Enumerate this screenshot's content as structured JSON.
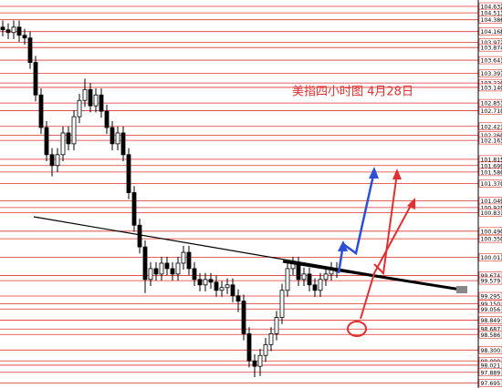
{
  "chart_data": {
    "type": "candlestick",
    "annotation": "美指四小时图 4月28日",
    "ylim": [
      97.6,
      104.75
    ],
    "level_color": "#e03030",
    "up_color": "#ffffff",
    "down_color": "#000000",
    "yticks": [
      104.632,
      104.513,
      104.386,
      104.168,
      103.972,
      103.874,
      103.641,
      103.397,
      {
        "value": 103.22,
        "label": "103.220"
      },
      {
        "value": 103.14,
        "label": "103.140"
      },
      102.851,
      {
        "value": 102.71,
        "label": "102.710"
      },
      102.421,
      {
        "value": 102.26,
        "label": "102.260"
      },
      102.163,
      101.815,
      101.699,
      {
        "value": 101.58,
        "label": "101.580"
      },
      {
        "value": 101.37,
        "label": "101.370"
      },
      101.049,
      100.925,
      100.831,
      {
        "value": 100.49,
        "label": "100.490"
      },
      {
        "value": 100.35,
        "label": "100.350"
      },
      100.011,
      99.674,
      99.579,
      99.295,
      {
        "value": 99.15,
        "label": "99.150"
      },
      99.056,
      98.849,
      98.687,
      98.586,
      {
        "value": 98.3,
        "label": "98.300"
      },
      98.099,
      98.021,
      97.889,
      97.695
    ],
    "open": [
      104.25,
      104.2,
      104.15,
      104.25,
      104.1,
      104.05,
      103.6,
      103.0,
      102.4,
      101.9,
      101.7,
      101.9,
      102.3,
      102.1,
      102.6,
      102.9,
      103.1,
      102.8,
      103.0,
      102.7,
      102.4,
      102.1,
      102.3,
      101.9,
      101.2,
      100.6,
      100.2,
      99.6,
      99.8,
      99.7,
      99.9,
      99.8,
      99.7,
      99.9,
      100.1,
      99.8,
      99.6,
      99.5,
      99.6,
      99.55,
      99.4,
      99.45,
      99.5,
      99.3,
      99.2,
      98.6,
      98.1,
      98.0,
      98.2,
      98.4,
      98.6,
      98.9,
      99.4,
      99.8,
      99.9,
      99.6,
      99.7,
      99.5,
      99.4,
      99.6,
      99.7,
      99.8
    ],
    "high": [
      104.37,
      104.32,
      104.37,
      104.37,
      104.22,
      104.17,
      103.72,
      103.12,
      102.52,
      102.02,
      102.02,
      102.42,
      102.42,
      102.72,
      103.02,
      103.3,
      103.22,
      103.12,
      103.12,
      102.82,
      102.52,
      102.42,
      102.42,
      102.02,
      101.32,
      100.72,
      100.32,
      99.92,
      99.92,
      100.02,
      100.02,
      99.92,
      100.02,
      100.22,
      100.22,
      99.92,
      99.72,
      99.72,
      99.72,
      99.67,
      99.57,
      99.62,
      99.62,
      99.42,
      99.32,
      98.72,
      98.22,
      98.32,
      98.52,
      98.72,
      99.02,
      99.52,
      99.92,
      100.02,
      100.02,
      99.82,
      99.82,
      99.62,
      99.72,
      99.82,
      99.92,
      99.92
    ],
    "low": [
      104.08,
      104.03,
      104.03,
      103.98,
      103.93,
      103.48,
      102.88,
      102.28,
      101.78,
      101.5,
      101.58,
      101.78,
      101.98,
      101.98,
      102.48,
      102.78,
      102.68,
      102.68,
      102.58,
      102.28,
      101.98,
      101.98,
      101.78,
      101.08,
      100.48,
      100.08,
      99.35,
      99.48,
      99.58,
      99.58,
      99.68,
      99.58,
      99.58,
      99.78,
      99.68,
      99.48,
      99.38,
      99.38,
      99.43,
      99.28,
      99.28,
      99.33,
      99.18,
      99.0,
      98.48,
      97.98,
      97.8,
      97.82,
      98.08,
      98.28,
      98.48,
      98.78,
      99.28,
      99.68,
      99.48,
      99.48,
      99.38,
      99.28,
      99.28,
      99.48,
      99.58,
      99.63
    ],
    "close": [
      104.2,
      104.15,
      104.25,
      104.1,
      104.05,
      103.6,
      103.0,
      102.4,
      101.9,
      101.7,
      101.9,
      102.3,
      102.1,
      102.6,
      102.9,
      103.1,
      102.8,
      103.0,
      102.7,
      102.4,
      102.1,
      102.3,
      101.9,
      101.2,
      100.6,
      100.2,
      99.6,
      99.8,
      99.7,
      99.9,
      99.8,
      99.7,
      99.9,
      100.1,
      99.8,
      99.6,
      99.5,
      99.6,
      99.55,
      99.4,
      99.45,
      99.5,
      99.3,
      99.2,
      98.6,
      98.1,
      98.0,
      98.2,
      98.4,
      98.6,
      98.9,
      99.4,
      99.8,
      99.9,
      99.6,
      99.7,
      99.5,
      99.4,
      99.6,
      99.7,
      99.8,
      99.75
    ]
  }
}
